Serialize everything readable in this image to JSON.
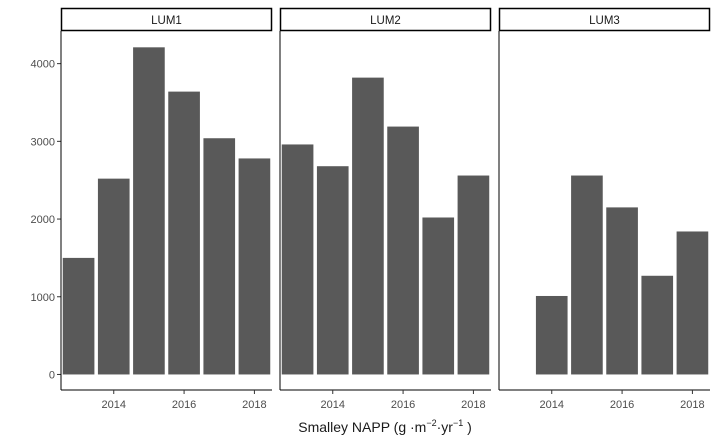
{
  "chart_data": {
    "type": "bar",
    "facet_variable": "panel",
    "panels": [
      {
        "label": "LUM1",
        "x": [
          2013,
          2014,
          2015,
          2016,
          2017,
          2018
        ],
        "values": [
          1500,
          2520,
          4210,
          3640,
          3040,
          2780
        ]
      },
      {
        "label": "LUM2",
        "x": [
          2013,
          2014,
          2015,
          2016,
          2017,
          2018
        ],
        "values": [
          2960,
          2680,
          3820,
          3190,
          2020,
          2560
        ]
      },
      {
        "label": "LUM3",
        "x": [
          2014,
          2015,
          2016,
          2017,
          2018
        ],
        "values": [
          1010,
          2560,
          2150,
          1270,
          1840
        ]
      }
    ],
    "xticks": [
      2014,
      2016,
      2018
    ],
    "xlim": [
      2012.5,
      2018.5
    ],
    "yticks": [
      0,
      1000,
      2000,
      3000,
      4000
    ],
    "ylim": [
      -200,
      4420
    ],
    "xlabel": {
      "prefix": "Smalley NAPP (g ",
      "middle1": "·m",
      "sup1": "−2",
      "middle2": "·yr",
      "sup2": "−1",
      "suffix": " )"
    },
    "ylabel": "",
    "bar_color": "#595959",
    "grid": false
  }
}
